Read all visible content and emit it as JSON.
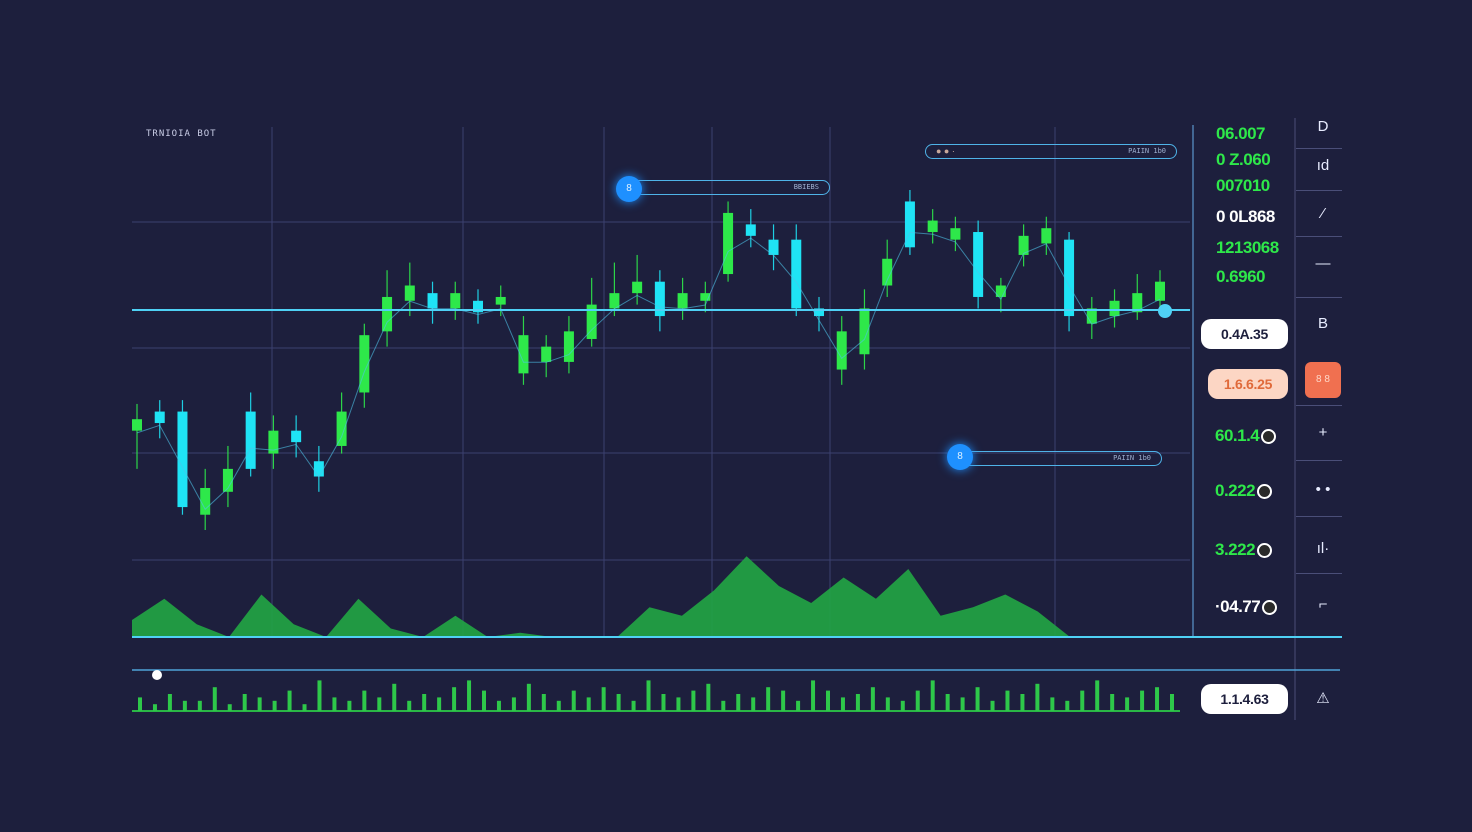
{
  "app": {
    "title": "TRNIOIA BOT"
  },
  "chart_data": {
    "type": "candlestick",
    "title": "",
    "grid": true,
    "levels": {
      "horizontal_line_color": "#4fd1f5"
    },
    "colors": {
      "up": "#2ee84a",
      "down": "#1fe3f5",
      "background": "#1d1f3d",
      "grid": "#3b4170"
    },
    "candles": [
      {
        "o": 0.4,
        "c": 0.43,
        "h": 0.47,
        "l": 0.3
      },
      {
        "o": 0.45,
        "c": 0.42,
        "h": 0.48,
        "l": 0.38
      },
      {
        "o": 0.45,
        "c": 0.2,
        "h": 0.48,
        "l": 0.18
      },
      {
        "o": 0.18,
        "c": 0.25,
        "h": 0.3,
        "l": 0.14
      },
      {
        "o": 0.24,
        "c": 0.3,
        "h": 0.36,
        "l": 0.2
      },
      {
        "o": 0.45,
        "c": 0.3,
        "h": 0.5,
        "l": 0.28
      },
      {
        "o": 0.34,
        "c": 0.4,
        "h": 0.44,
        "l": 0.3
      },
      {
        "o": 0.4,
        "c": 0.37,
        "h": 0.44,
        "l": 0.33
      },
      {
        "o": 0.32,
        "c": 0.28,
        "h": 0.36,
        "l": 0.24
      },
      {
        "o": 0.36,
        "c": 0.45,
        "h": 0.5,
        "l": 0.34
      },
      {
        "o": 0.5,
        "c": 0.65,
        "h": 0.68,
        "l": 0.46
      },
      {
        "o": 0.66,
        "c": 0.75,
        "h": 0.82,
        "l": 0.62
      },
      {
        "o": 0.74,
        "c": 0.78,
        "h": 0.84,
        "l": 0.7
      },
      {
        "o": 0.76,
        "c": 0.72,
        "h": 0.79,
        "l": 0.68
      },
      {
        "o": 0.72,
        "c": 0.76,
        "h": 0.79,
        "l": 0.69
      },
      {
        "o": 0.74,
        "c": 0.71,
        "h": 0.77,
        "l": 0.68
      },
      {
        "o": 0.73,
        "c": 0.75,
        "h": 0.78,
        "l": 0.7
      },
      {
        "o": 0.55,
        "c": 0.65,
        "h": 0.7,
        "l": 0.52
      },
      {
        "o": 0.58,
        "c": 0.62,
        "h": 0.65,
        "l": 0.54
      },
      {
        "o": 0.58,
        "c": 0.66,
        "h": 0.7,
        "l": 0.55
      },
      {
        "o": 0.64,
        "c": 0.73,
        "h": 0.8,
        "l": 0.62
      },
      {
        "o": 0.72,
        "c": 0.76,
        "h": 0.84,
        "l": 0.7
      },
      {
        "o": 0.76,
        "c": 0.79,
        "h": 0.86,
        "l": 0.73
      },
      {
        "o": 0.79,
        "c": 0.7,
        "h": 0.82,
        "l": 0.66
      },
      {
        "o": 0.72,
        "c": 0.76,
        "h": 0.8,
        "l": 0.69
      },
      {
        "o": 0.74,
        "c": 0.76,
        "h": 0.79,
        "l": 0.71
      },
      {
        "o": 0.81,
        "c": 0.97,
        "h": 1.0,
        "l": 0.79
      },
      {
        "o": 0.94,
        "c": 0.91,
        "h": 0.98,
        "l": 0.88
      },
      {
        "o": 0.9,
        "c": 0.86,
        "h": 0.94,
        "l": 0.82
      },
      {
        "o": 0.9,
        "c": 0.72,
        "h": 0.94,
        "l": 0.7
      },
      {
        "o": 0.72,
        "c": 0.7,
        "h": 0.75,
        "l": 0.66
      },
      {
        "o": 0.56,
        "c": 0.66,
        "h": 0.7,
        "l": 0.52
      },
      {
        "o": 0.6,
        "c": 0.72,
        "h": 0.77,
        "l": 0.56
      },
      {
        "o": 0.78,
        "c": 0.85,
        "h": 0.9,
        "l": 0.75
      },
      {
        "o": 1.0,
        "c": 0.88,
        "h": 1.03,
        "l": 0.86
      },
      {
        "o": 0.92,
        "c": 0.95,
        "h": 0.98,
        "l": 0.89
      },
      {
        "o": 0.9,
        "c": 0.93,
        "h": 0.96,
        "l": 0.87
      },
      {
        "o": 0.92,
        "c": 0.75,
        "h": 0.95,
        "l": 0.72
      },
      {
        "o": 0.75,
        "c": 0.78,
        "h": 0.8,
        "l": 0.71
      },
      {
        "o": 0.86,
        "c": 0.91,
        "h": 0.94,
        "l": 0.83
      },
      {
        "o": 0.89,
        "c": 0.93,
        "h": 0.96,
        "l": 0.86
      },
      {
        "o": 0.9,
        "c": 0.7,
        "h": 0.92,
        "l": 0.66
      },
      {
        "o": 0.68,
        "c": 0.72,
        "h": 0.75,
        "l": 0.64
      },
      {
        "o": 0.7,
        "c": 0.74,
        "h": 0.77,
        "l": 0.67
      },
      {
        "o": 0.71,
        "c": 0.76,
        "h": 0.81,
        "l": 0.69
      },
      {
        "o": 0.74,
        "c": 0.79,
        "h": 0.82,
        "l": 0.71
      }
    ],
    "area": [
      0.2,
      0.45,
      0.15,
      0.0,
      0.5,
      0.15,
      0.0,
      0.45,
      0.1,
      0.0,
      0.25,
      0.0,
      0.05,
      0.0,
      0.0,
      0.0,
      0.35,
      0.25,
      0.55,
      0.95,
      0.6,
      0.4,
      0.7,
      0.45,
      0.8,
      0.25,
      0.35,
      0.5,
      0.3,
      0.0
    ],
    "volume": [
      0.4,
      0.2,
      0.5,
      0.3,
      0.3,
      0.7,
      0.2,
      0.5,
      0.4,
      0.3,
      0.6,
      0.2,
      0.9,
      0.4,
      0.3,
      0.6,
      0.4,
      0.8,
      0.3,
      0.5,
      0.4,
      0.7,
      0.9,
      0.6,
      0.3,
      0.4,
      0.8,
      0.5,
      0.3,
      0.6,
      0.4,
      0.7,
      0.5,
      0.3,
      0.9,
      0.5,
      0.4,
      0.6,
      0.8,
      0.3,
      0.5,
      0.4,
      0.7,
      0.6,
      0.3,
      0.9,
      0.6,
      0.4,
      0.5,
      0.7,
      0.4,
      0.3,
      0.6,
      0.9,
      0.5,
      0.4,
      0.7,
      0.3,
      0.6,
      0.5,
      0.8,
      0.4,
      0.3,
      0.6,
      0.9,
      0.5,
      0.4,
      0.6,
      0.7,
      0.5
    ]
  },
  "overlays": {
    "pill_top_right": {
      "label": "PAIIN 1b0",
      "icon": "coin-icon"
    },
    "pill_top_left": {
      "label": "BBIEBS",
      "badge": "8"
    },
    "pill_lower": {
      "label": "PAIIN 1b0",
      "badge": "8"
    }
  },
  "right_panel": {
    "top_values": [
      {
        "text": "06.007",
        "color": "#2ee84a"
      },
      {
        "text": "0 Z.060",
        "color": "#2ee84a"
      },
      {
        "text": "007010",
        "color": "#2ee84a"
      },
      {
        "text": "0 0L868",
        "color": "#ffffff"
      },
      {
        "text": "1213068",
        "color": "#2ee84a"
      },
      {
        "text": "0.6960",
        "color": "#2ee84a"
      }
    ],
    "box_values": [
      {
        "text": "0.4A.35",
        "style": "white"
      },
      {
        "text": "1.6.6.25",
        "style": "peach"
      }
    ],
    "coin_values": [
      {
        "text": "60.1.4",
        "color": "#2ee84a"
      },
      {
        "text": "0.222",
        "color": "#2ee84a"
      },
      {
        "text": "3.222",
        "color": "#2ee84a"
      },
      {
        "text": "·04.77",
        "color": "#ffffff"
      }
    ],
    "bottom_box": "1.1.4.63"
  },
  "toolbar": {
    "items": [
      {
        "icon": "d-icon",
        "glyph": "D"
      },
      {
        "icon": "candles-icon",
        "glyph": "ıd"
      },
      {
        "icon": "pen-icon",
        "glyph": "⁄"
      },
      {
        "icon": "line-icon",
        "glyph": "—"
      },
      {
        "icon": "b-icon",
        "glyph": "B"
      },
      {
        "icon": "alert-icon",
        "glyph": "8 8",
        "accent": true
      },
      {
        "icon": "plus-icon",
        "glyph": "+"
      },
      {
        "icon": "more-icon",
        "glyph": "• •"
      },
      {
        "icon": "bars-icon",
        "glyph": "ıl·"
      },
      {
        "icon": "trend-icon",
        "glyph": "⌐"
      },
      {
        "icon": "triangle-icon",
        "glyph": "⚠"
      }
    ]
  }
}
